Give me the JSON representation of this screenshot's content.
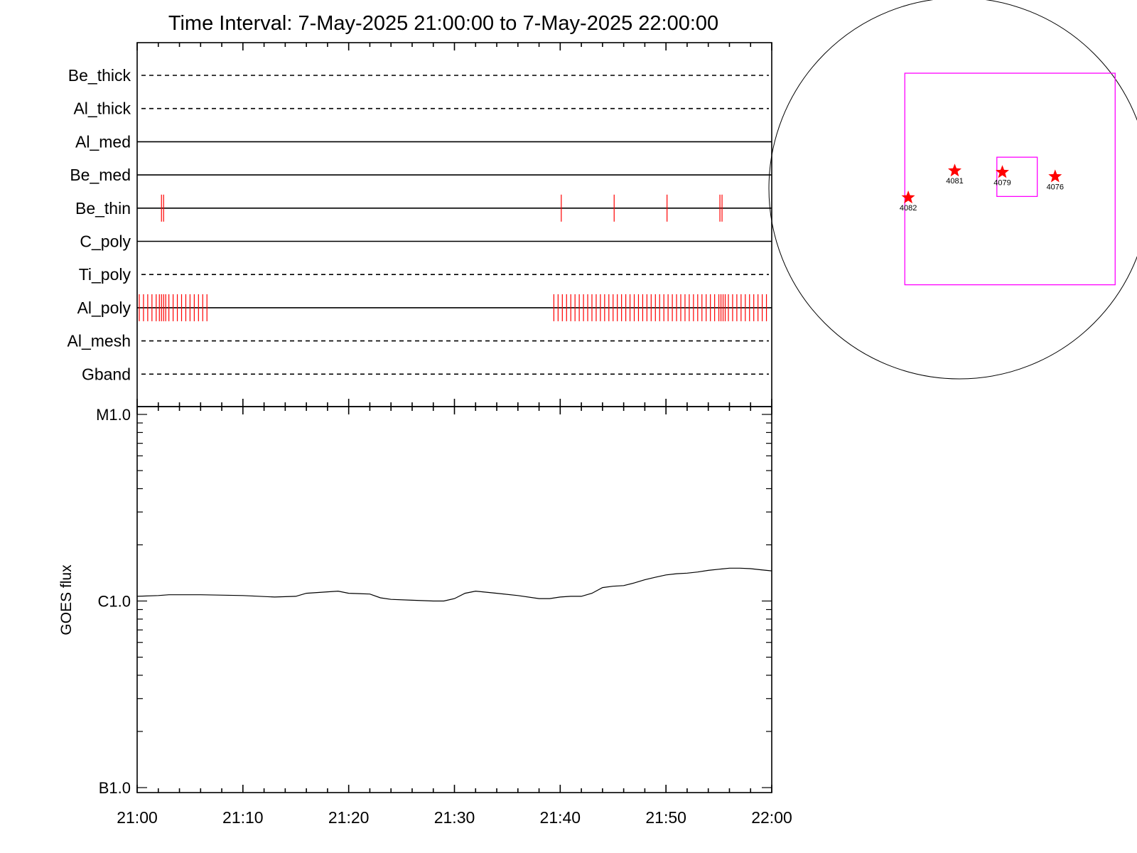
{
  "chart_data": [
    {
      "type": "line",
      "title": "Time Interval:  7-May-2025 21:00:00 to  7-May-2025 22:00:00",
      "subtitle": "",
      "xlabel": "",
      "ylabel": "",
      "x_range": [
        "21:00",
        "22:00"
      ],
      "x_unit": "minutes after 21:00",
      "filter_rows": [
        {
          "name": "Be_thick",
          "line": "dashed",
          "events": []
        },
        {
          "name": "Al_thick",
          "line": "dashed",
          "events": []
        },
        {
          "name": "Al_med",
          "line": "solid",
          "events": []
        },
        {
          "name": "Be_med",
          "line": "solid",
          "events": []
        },
        {
          "name": "Be_thin",
          "line": "solid",
          "events": [
            2.3,
            2.5,
            40.1,
            45.1,
            50.1,
            55.1,
            55.3
          ]
        },
        {
          "name": "C_poly",
          "line": "solid",
          "events": []
        },
        {
          "name": "Ti_poly",
          "line": "dashed",
          "events": []
        },
        {
          "name": "Al_poly",
          "line": "solid",
          "events": [
            0.2,
            0.6,
            1.0,
            1.4,
            1.8,
            2.1,
            2.3,
            2.5,
            2.7,
            3.0,
            3.4,
            3.8,
            4.2,
            4.6,
            5.0,
            5.4,
            5.8,
            6.2,
            6.6,
            39.4,
            39.8,
            40.2,
            40.6,
            41.0,
            41.4,
            41.8,
            42.2,
            42.6,
            43.0,
            43.4,
            43.8,
            44.2,
            44.6,
            45.0,
            45.4,
            45.8,
            46.2,
            46.6,
            47.0,
            47.4,
            47.8,
            48.2,
            48.6,
            49.0,
            49.4,
            49.8,
            50.2,
            50.6,
            51.0,
            51.4,
            51.8,
            52.2,
            52.6,
            53.0,
            53.4,
            53.8,
            54.2,
            54.6,
            55.0,
            55.2,
            55.4,
            55.6,
            55.9,
            56.3,
            56.7,
            57.1,
            57.5,
            57.9,
            58.3,
            58.7,
            59.1,
            59.5
          ]
        },
        {
          "name": "Al_mesh",
          "line": "dashed",
          "events": []
        },
        {
          "name": "Gband",
          "line": "dashed",
          "events": []
        }
      ]
    },
    {
      "type": "line",
      "title": "",
      "xlabel": "",
      "ylabel": "GOES flux",
      "y_scale": "log",
      "ylim": [
        1e-07,
        1e-05
      ],
      "y_ticks": [
        {
          "label": "B1.0",
          "value": 1e-07
        },
        {
          "label": "C1.0",
          "value": 1e-06
        },
        {
          "label": "M1.0",
          "value": 1e-05
        }
      ],
      "x_ticks": [
        "21:00",
        "21:10",
        "21:20",
        "21:30",
        "21:40",
        "21:50",
        "22:00"
      ],
      "x_unit": "minutes after 21:00",
      "series": [
        {
          "name": "",
          "x": [
            0,
            2,
            3,
            6,
            10,
            13,
            15,
            16,
            18,
            19,
            20,
            22,
            23,
            24,
            26,
            28,
            29,
            30,
            31,
            32,
            34,
            36,
            38,
            39,
            40,
            41,
            42,
            43,
            44,
            45,
            46,
            47,
            48,
            49,
            50,
            51,
            52,
            53,
            54,
            55,
            56,
            57,
            58,
            59,
            60
          ],
          "y": [
            1.06e-06,
            1.07e-06,
            1.08e-06,
            1.08e-06,
            1.07e-06,
            1.05e-06,
            1.06e-06,
            1.1e-06,
            1.12e-06,
            1.13e-06,
            1.1e-06,
            1.09e-06,
            1.04e-06,
            1.02e-06,
            1.01e-06,
            1e-06,
            1e-06,
            1.03e-06,
            1.1e-06,
            1.13e-06,
            1.1e-06,
            1.07e-06,
            1.03e-06,
            1.03e-06,
            1.05e-06,
            1.06e-06,
            1.06e-06,
            1.1e-06,
            1.18e-06,
            1.2e-06,
            1.21e-06,
            1.25e-06,
            1.3e-06,
            1.34e-06,
            1.38e-06,
            1.4e-06,
            1.41e-06,
            1.43e-06,
            1.46e-06,
            1.48e-06,
            1.5e-06,
            1.5e-06,
            1.49e-06,
            1.47e-06,
            1.45e-06
          ]
        }
      ]
    },
    {
      "type": "scatter",
      "title": "",
      "points": [
        {
          "label": "4082",
          "x": -885,
          "y": -160
        },
        {
          "label": "4081",
          "x": -80,
          "y": 305
        },
        {
          "label": "4079",
          "x": 745,
          "y": 280
        },
        {
          "label": "4076",
          "x": 1660,
          "y": 205
        }
      ],
      "xlim": [
        -3300,
        3300
      ],
      "ylim": [
        -3300,
        3300
      ],
      "solar_disk_radius": 3300,
      "fov_box": {
        "x": [
          650,
          1350
        ],
        "y": [
          -140,
          540
        ]
      },
      "large_box": {
        "x": [
          -945,
          2700
        ],
        "y": [
          -1670,
          1995
        ]
      },
      "marker_color": "#ff0000",
      "box_color": "#ff00ff"
    }
  ]
}
